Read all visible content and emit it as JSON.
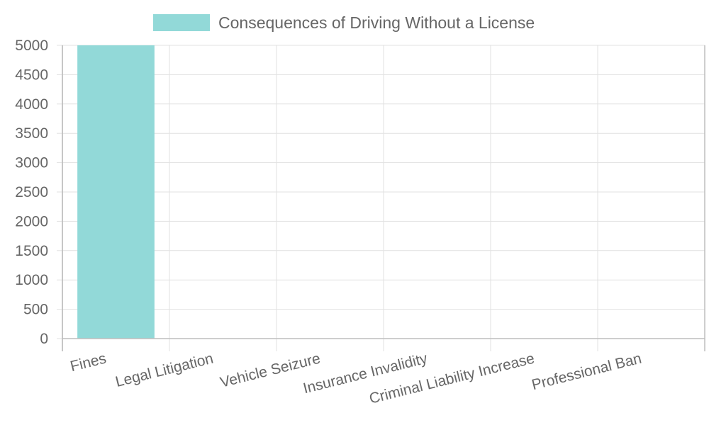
{
  "chart_data": {
    "type": "bar",
    "categories": [
      "Fines",
      "Legal Litigation",
      "Vehicle Seizure",
      "Insurance Invalidity",
      "Criminal Liability Increase",
      "Professional Ban"
    ],
    "series": [
      {
        "name": "Consequences of Driving Without a License",
        "values": [
          5000,
          0,
          0,
          0,
          0,
          0
        ],
        "color": "#92d9d8"
      }
    ],
    "ylim": [
      0,
      5000
    ],
    "ytick_step": 500,
    "grid": true,
    "legend": "top-center",
    "xlabel": "",
    "ylabel": ""
  }
}
